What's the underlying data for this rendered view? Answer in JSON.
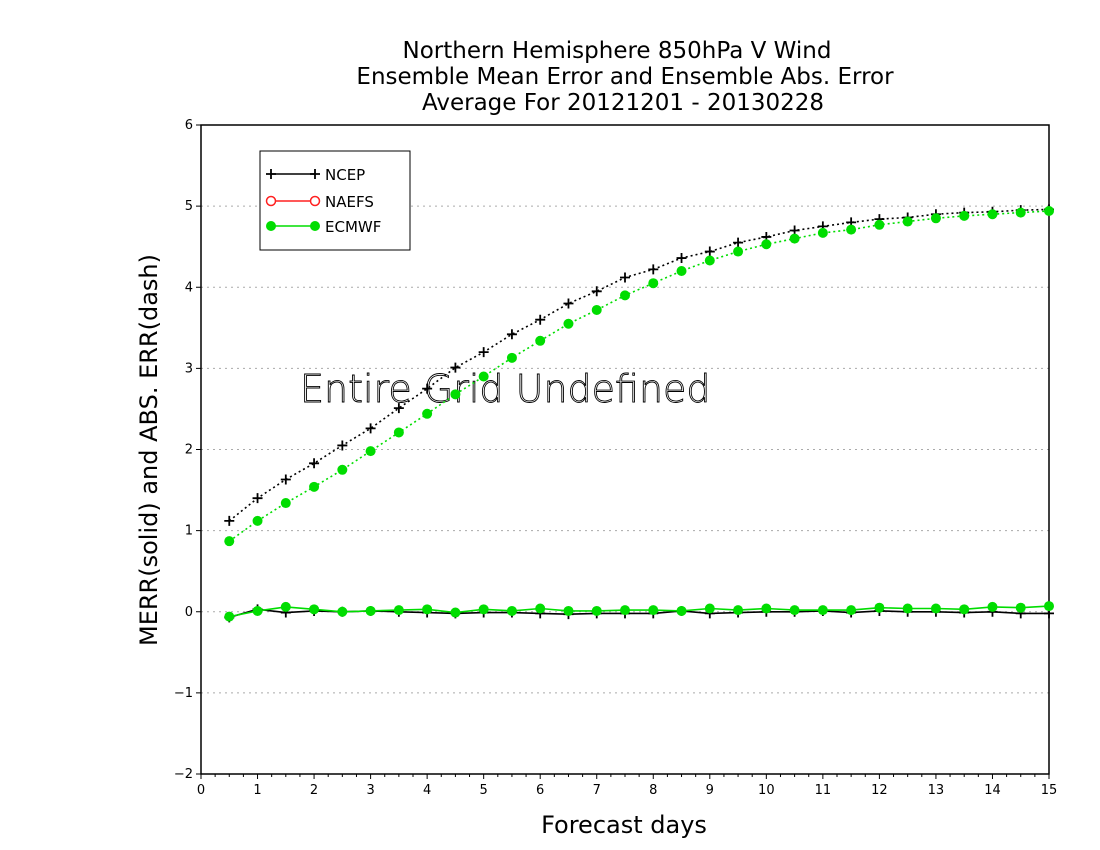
{
  "chart_data": {
    "type": "line",
    "title": [
      "Northern Hemisphere 850hPa V Wind",
      "Ensemble Mean Error and Ensemble Abs. Error",
      "Average For 20121201 - 20130228"
    ],
    "xlabel": "Forecast days",
    "ylabel": "MERR(solid) and ABS. ERR(dash)",
    "xlim": [
      0,
      15
    ],
    "ylim": [
      -2,
      6
    ],
    "xticks": [
      "0",
      "1",
      "2",
      "3",
      "4",
      "5",
      "6",
      "7",
      "8",
      "9",
      "10",
      "11",
      "12",
      "13",
      "14",
      "15"
    ],
    "yticks": [
      "−2",
      "−1",
      "0",
      "1",
      "2",
      "3",
      "4",
      "5",
      "6"
    ],
    "grid": "horizontal dotted",
    "legend_placement": "top-left",
    "annotation": "Entire Grid Undefined",
    "colors": {
      "NCEP": "#000000",
      "NAEFS": "#ff2020",
      "ECMWF": "#00dd00"
    },
    "x": [
      0.5,
      1,
      1.5,
      2,
      2.5,
      3,
      3.5,
      4,
      4.5,
      5,
      5.5,
      6,
      6.5,
      7,
      7.5,
      8,
      8.5,
      9,
      9.5,
      10,
      10.5,
      11,
      11.5,
      12,
      12.5,
      13,
      13.5,
      14,
      14.5,
      15
    ],
    "series": [
      {
        "name": "NCEP",
        "style": "dash",
        "marker": "plus",
        "values": [
          1.12,
          1.4,
          1.63,
          1.83,
          2.05,
          2.26,
          2.51,
          2.75,
          3.01,
          3.2,
          3.42,
          3.6,
          3.8,
          3.95,
          4.12,
          4.22,
          4.36,
          4.44,
          4.55,
          4.62,
          4.7,
          4.75,
          4.8,
          4.84,
          4.86,
          4.9,
          4.92,
          4.93,
          4.95,
          4.96
        ]
      },
      {
        "name": "ECMWF",
        "style": "dash",
        "marker": "dot",
        "values": [
          0.87,
          1.12,
          1.34,
          1.54,
          1.75,
          1.98,
          2.21,
          2.44,
          2.68,
          2.9,
          3.13,
          3.34,
          3.55,
          3.72,
          3.9,
          4.05,
          4.2,
          4.33,
          4.44,
          4.53,
          4.6,
          4.67,
          4.71,
          4.77,
          4.81,
          4.85,
          4.88,
          4.9,
          4.92,
          4.94
        ]
      },
      {
        "name": "NCEP",
        "style": "solid",
        "marker": "plus",
        "values": [
          -0.07,
          0.03,
          -0.01,
          0.01,
          0.0,
          0.01,
          0.0,
          -0.01,
          -0.02,
          -0.01,
          -0.01,
          -0.02,
          -0.03,
          -0.02,
          -0.02,
          -0.02,
          0.01,
          -0.02,
          -0.01,
          0.0,
          0.0,
          0.01,
          -0.01,
          0.01,
          0.0,
          0.0,
          -0.01,
          0.0,
          -0.02,
          -0.02
        ]
      },
      {
        "name": "ECMWF",
        "style": "solid",
        "marker": "dot",
        "values": [
          -0.06,
          0.01,
          0.06,
          0.03,
          0.0,
          0.01,
          0.02,
          0.03,
          -0.01,
          0.03,
          0.01,
          0.04,
          0.01,
          0.01,
          0.02,
          0.02,
          0.01,
          0.04,
          0.02,
          0.04,
          0.02,
          0.02,
          0.02,
          0.05,
          0.04,
          0.04,
          0.03,
          0.06,
          0.05,
          0.07
        ]
      }
    ]
  }
}
